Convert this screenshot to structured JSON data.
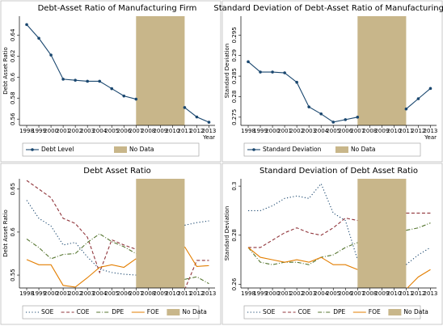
{
  "chart_data": [
    {
      "type": "line",
      "title": "Debt-Asset Ratio of Manufacturing Firm",
      "ylabel": "Debt Asset Ratio",
      "xlabel": "Year",
      "x": [
        1998,
        1999,
        2000,
        2001,
        2002,
        2003,
        2004,
        2005,
        2006,
        2007,
        2008,
        2009,
        2010,
        2011,
        2012,
        2013
      ],
      "xlim": [
        1997.4,
        2013.5
      ],
      "ylim": [
        0.554,
        0.658
      ],
      "yticks": [
        0.56,
        0.58,
        0.6,
        0.62,
        0.64
      ],
      "no_data": {
        "label": "No Data",
        "from": 2007,
        "to": 2011,
        "color": "#c8b68a"
      },
      "series": [
        {
          "name": "Debt Level",
          "color": "#1a476f",
          "dash": "solid",
          "marker": true,
          "values": [
            0.65,
            0.637,
            0.621,
            0.598,
            0.597,
            0.596,
            0.596,
            0.589,
            0.582,
            0.579,
            null,
            null,
            null,
            0.571,
            0.562,
            0.557
          ]
        }
      ]
    },
    {
      "type": "line",
      "title": "Standard Deviation of Debt-Asset Ratio of Manufacturing Firm",
      "ylabel": "Standard Deviation",
      "xlabel": "Year",
      "x": [
        1998,
        1999,
        2000,
        2001,
        2002,
        2003,
        2004,
        2005,
        2006,
        2007,
        2008,
        2009,
        2010,
        2011,
        2012,
        2013
      ],
      "xlim": [
        1997.4,
        2013.5
      ],
      "ylim": [
        0.273,
        0.2996
      ],
      "yticks": [
        0.275,
        0.28,
        0.285,
        0.29,
        0.295
      ],
      "no_data": {
        "label": "No Data",
        "from": 2007,
        "to": 2011,
        "color": "#c8b68a"
      },
      "series": [
        {
          "name": "Standard Deviation",
          "color": "#1a476f",
          "dash": "solid",
          "marker": true,
          "values": [
            0.2885,
            0.286,
            0.286,
            0.2858,
            0.2835,
            0.2775,
            0.2758,
            0.2738,
            0.2744,
            0.275,
            null,
            null,
            null,
            0.277,
            0.2795,
            0.282
          ]
        }
      ]
    },
    {
      "type": "line",
      "title": "Debt Asset Ratio",
      "ylabel": "Debt Asset Ratio",
      "x": [
        1998,
        1999,
        2000,
        2001,
        2002,
        2003,
        2004,
        2005,
        2006,
        2007,
        2008,
        2009,
        2010,
        2011,
        2012,
        2013
      ],
      "xlim": [
        1997.4,
        2013.5
      ],
      "ylim": [
        0.535,
        0.662
      ],
      "yticks": [
        0.55,
        0.6,
        0.65
      ],
      "no_data": {
        "label": "No Data",
        "from": 2007,
        "to": 2011,
        "color": "#c8b68a"
      },
      "series": [
        {
          "name": "SOE",
          "color": "#1a476f",
          "dash": "dot",
          "marker": false,
          "values": [
            0.637,
            0.616,
            0.607,
            0.585,
            0.588,
            0.571,
            0.557,
            0.553,
            0.551,
            0.55,
            null,
            null,
            null,
            0.608,
            0.611,
            0.613
          ]
        },
        {
          "name": "COE",
          "color": "#90353b",
          "dash": "dash",
          "marker": false,
          "values": [
            0.66,
            0.65,
            0.64,
            0.616,
            0.61,
            0.594,
            0.553,
            0.591,
            0.585,
            0.58,
            null,
            null,
            null,
            0.533,
            0.567,
            0.567
          ]
        },
        {
          "name": "DPE",
          "color": "#55752f",
          "dash": "dashdot",
          "marker": false,
          "values": [
            0.592,
            0.582,
            0.569,
            0.574,
            0.575,
            0.588,
            0.598,
            0.589,
            0.583,
            0.575,
            null,
            null,
            null,
            0.545,
            0.548,
            0.54
          ]
        },
        {
          "name": "FOE",
          "color": "#e37e00",
          "dash": "solid",
          "marker": false,
          "values": [
            0.568,
            0.562,
            0.562,
            0.538,
            0.536,
            0.547,
            0.559,
            0.562,
            0.559,
            0.569,
            null,
            null,
            null,
            0.583,
            0.56,
            0.561
          ]
        }
      ]
    },
    {
      "type": "line",
      "title": "Standard Deviation of Debt Asset Ratio",
      "ylabel": "Standard Deviation",
      "x": [
        1998,
        1999,
        2000,
        2001,
        2002,
        2003,
        2004,
        2005,
        2006,
        2007,
        2008,
        2009,
        2010,
        2011,
        2012,
        2013
      ],
      "xlim": [
        1997.4,
        2013.5
      ],
      "ylim": [
        0.2585,
        0.303
      ],
      "yticks": [
        0.26,
        0.28,
        0.3
      ],
      "no_data": {
        "label": "No Data",
        "from": 2007,
        "to": 2011,
        "color": "#c8b68a"
      },
      "series": [
        {
          "name": "SOE",
          "color": "#1a476f",
          "dash": "dot",
          "marker": false,
          "values": [
            0.29,
            0.29,
            0.292,
            0.295,
            0.296,
            0.295,
            0.301,
            0.289,
            0.286,
            0.27,
            null,
            null,
            null,
            0.268,
            0.272,
            0.275
          ]
        },
        {
          "name": "COE",
          "color": "#90353b",
          "dash": "dash",
          "marker": false,
          "values": [
            0.275,
            0.275,
            0.278,
            0.281,
            0.283,
            0.281,
            0.28,
            0.283,
            0.287,
            0.286,
            null,
            null,
            null,
            0.289,
            0.289,
            0.289
          ]
        },
        {
          "name": "DPE",
          "color": "#55752f",
          "dash": "dashdot",
          "marker": false,
          "values": [
            0.275,
            0.269,
            0.268,
            0.269,
            0.269,
            0.268,
            0.271,
            0.272,
            0.275,
            0.277,
            null,
            null,
            null,
            0.282,
            0.283,
            0.285
          ]
        },
        {
          "name": "FOE",
          "color": "#e37e00",
          "dash": "solid",
          "marker": false,
          "values": [
            0.275,
            0.271,
            0.27,
            0.269,
            0.27,
            0.269,
            0.271,
            0.268,
            0.268,
            0.266,
            null,
            null,
            null,
            0.258,
            0.263,
            0.266
          ]
        }
      ]
    }
  ]
}
